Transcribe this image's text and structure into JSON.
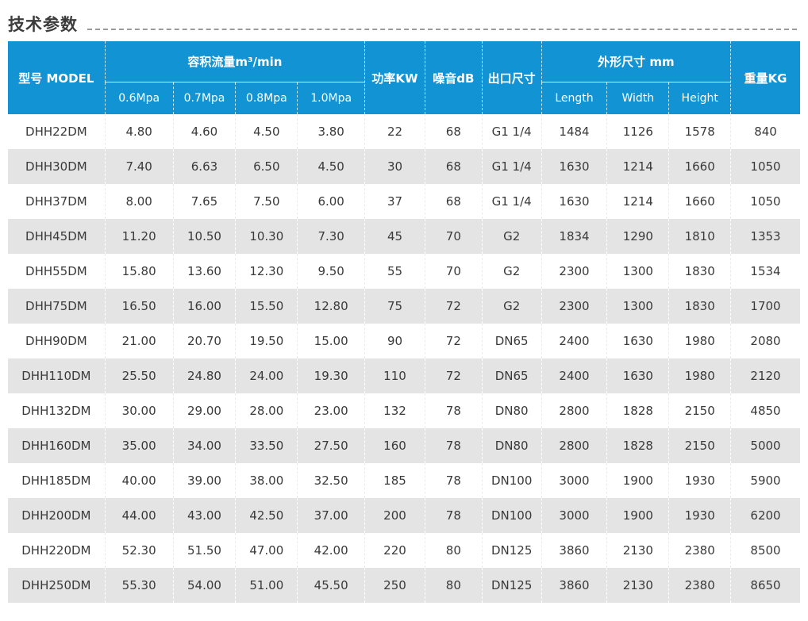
{
  "page": {
    "title": "技术参数"
  },
  "colors": {
    "header_bg": "#1193d4",
    "header_text": "#ffffff",
    "row_alt_bg": "#e4e4e4",
    "body_text": "#3a3a3a",
    "title_text": "#3c3c3c",
    "rule_color": "#9b9b9b"
  },
  "table": {
    "header": {
      "model": "型号 MODEL",
      "flow_group": "容积流量m³/min",
      "flow_cols": [
        "0.6Mpa",
        "0.7Mpa",
        "0.8Mpa",
        "1.0Mpa"
      ],
      "power": "功率KW",
      "noise": "噪音dB",
      "outlet": "出口尺寸",
      "dims_group": "外形尺寸 mm",
      "dims_cols": [
        "Length",
        "Width",
        "Height"
      ],
      "weight": "重量KG"
    },
    "rows": [
      {
        "model": "DHH22DM",
        "flow": [
          "4.80",
          "4.60",
          "4.50",
          "3.80"
        ],
        "power": "22",
        "noise": "68",
        "outlet": "G1 1/4",
        "dims": [
          "1484",
          "1126",
          "1578"
        ],
        "weight": "840"
      },
      {
        "model": "DHH30DM",
        "flow": [
          "7.40",
          "6.63",
          "6.50",
          "4.50"
        ],
        "power": "30",
        "noise": "68",
        "outlet": "G1 1/4",
        "dims": [
          "1630",
          "1214",
          "1660"
        ],
        "weight": "1050"
      },
      {
        "model": "DHH37DM",
        "flow": [
          "8.00",
          "7.65",
          "7.50",
          "6.00"
        ],
        "power": "37",
        "noise": "68",
        "outlet": "G1 1/4",
        "dims": [
          "1630",
          "1214",
          "1660"
        ],
        "weight": "1050"
      },
      {
        "model": "DHH45DM",
        "flow": [
          "11.20",
          "10.50",
          "10.30",
          "7.30"
        ],
        "power": "45",
        "noise": "70",
        "outlet": "G2",
        "dims": [
          "1834",
          "1290",
          "1810"
        ],
        "weight": "1353"
      },
      {
        "model": "DHH55DM",
        "flow": [
          "15.80",
          "13.60",
          "12.30",
          "9.50"
        ],
        "power": "55",
        "noise": "70",
        "outlet": "G2",
        "dims": [
          "2300",
          "1300",
          "1830"
        ],
        "weight": "1534"
      },
      {
        "model": "DHH75DM",
        "flow": [
          "16.50",
          "16.00",
          "15.50",
          "12.80"
        ],
        "power": "75",
        "noise": "72",
        "outlet": "G2",
        "dims": [
          "2300",
          "1300",
          "1830"
        ],
        "weight": "1700"
      },
      {
        "model": "DHH90DM",
        "flow": [
          "21.00",
          "20.70",
          "19.50",
          "15.00"
        ],
        "power": "90",
        "noise": "72",
        "outlet": "DN65",
        "dims": [
          "2400",
          "1630",
          "1980"
        ],
        "weight": "2080"
      },
      {
        "model": "DHH110DM",
        "flow": [
          "25.50",
          "24.80",
          "24.00",
          "19.30"
        ],
        "power": "110",
        "noise": "72",
        "outlet": "DN65",
        "dims": [
          "2400",
          "1630",
          "1980"
        ],
        "weight": "2120"
      },
      {
        "model": "DHH132DM",
        "flow": [
          "30.00",
          "29.00",
          "28.00",
          "23.00"
        ],
        "power": "132",
        "noise": "78",
        "outlet": "DN80",
        "dims": [
          "2800",
          "1828",
          "2150"
        ],
        "weight": "4850"
      },
      {
        "model": "DHH160DM",
        "flow": [
          "35.00",
          "34.00",
          "33.50",
          "27.50"
        ],
        "power": "160",
        "noise": "78",
        "outlet": "DN80",
        "dims": [
          "2800",
          "1828",
          "2150"
        ],
        "weight": "5000"
      },
      {
        "model": "DHH185DM",
        "flow": [
          "40.00",
          "39.00",
          "38.00",
          "32.50"
        ],
        "power": "185",
        "noise": "78",
        "outlet": "DN100",
        "dims": [
          "3000",
          "1900",
          "1930"
        ],
        "weight": "5900"
      },
      {
        "model": "DHH200DM",
        "flow": [
          "44.00",
          "43.00",
          "42.50",
          "37.00"
        ],
        "power": "200",
        "noise": "78",
        "outlet": "DN100",
        "dims": [
          "3000",
          "1900",
          "1930"
        ],
        "weight": "6200"
      },
      {
        "model": "DHH220DM",
        "flow": [
          "52.30",
          "51.50",
          "47.00",
          "42.00"
        ],
        "power": "220",
        "noise": "80",
        "outlet": "DN125",
        "dims": [
          "3860",
          "2130",
          "2380"
        ],
        "weight": "8500"
      },
      {
        "model": "DHH250DM",
        "flow": [
          "55.30",
          "54.00",
          "51.00",
          "45.50"
        ],
        "power": "250",
        "noise": "80",
        "outlet": "DN125",
        "dims": [
          "3860",
          "2130",
          "2380"
        ],
        "weight": "8650"
      }
    ]
  }
}
